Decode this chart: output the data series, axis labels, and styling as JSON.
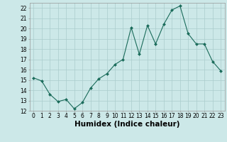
{
  "x": [
    0,
    1,
    2,
    3,
    4,
    5,
    6,
    7,
    8,
    9,
    10,
    11,
    12,
    13,
    14,
    15,
    16,
    17,
    18,
    19,
    20,
    21,
    22,
    23
  ],
  "y": [
    15.2,
    14.9,
    13.6,
    12.9,
    13.1,
    12.2,
    12.8,
    14.2,
    15.1,
    15.6,
    16.5,
    17.0,
    20.1,
    17.5,
    20.3,
    18.5,
    20.4,
    21.8,
    22.2,
    19.5,
    18.5,
    18.5,
    16.8,
    15.9
  ],
  "line_color": "#1a6b5a",
  "marker": "D",
  "marker_size": 2.0,
  "bg_color": "#cce8e8",
  "grid_color": "#aacccc",
  "xlabel": "Humidex (Indice chaleur)",
  "xlim": [
    -0.5,
    23.5
  ],
  "ylim": [
    12,
    22.5
  ],
  "yticks": [
    12,
    13,
    14,
    15,
    16,
    17,
    18,
    19,
    20,
    21,
    22
  ],
  "xticks": [
    0,
    1,
    2,
    3,
    4,
    5,
    6,
    7,
    8,
    9,
    10,
    11,
    12,
    13,
    14,
    15,
    16,
    17,
    18,
    19,
    20,
    21,
    22,
    23
  ],
  "tick_fontsize": 5.5,
  "label_fontsize": 7.5
}
